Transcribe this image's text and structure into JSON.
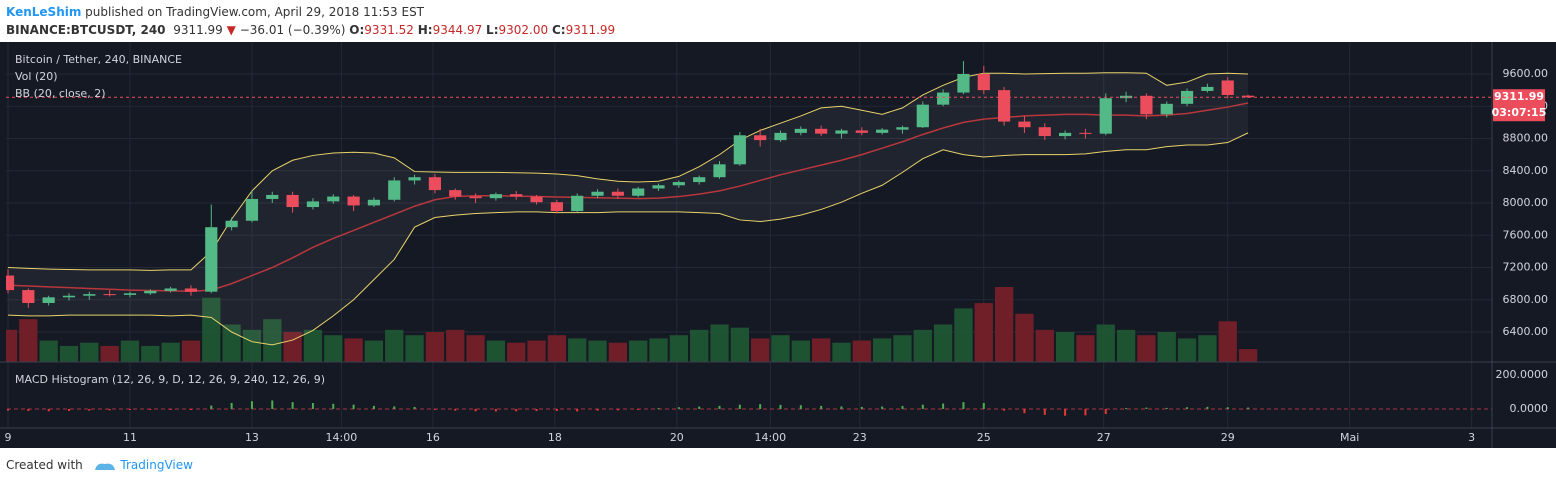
{
  "header": {
    "author": "KenLeShim",
    "published": " published on TradingView.com, April 29, 2018 11:53 EST",
    "symbol": "BINANCE:BTCUSDT, 240",
    "last": "9311.99",
    "change_arrow": "▼",
    "change": "−36.01 (−0.39%)",
    "o_label": "O:",
    "open": "9331.52",
    "h_label": "H:",
    "high": "9344.97",
    "l_label": "L:",
    "low": "9302.00",
    "c_label": "C:",
    "close": "9311.99"
  },
  "chart_data": [
    {
      "type": "candlestick",
      "title": "Bitcoin / Tether, 240, BINANCE",
      "legend": [
        "Vol (20)",
        "BB (20, close, 2)"
      ],
      "countdown": "03:07:15",
      "up_color": "#53b987",
      "down_color": "#eb4d5c",
      "band_color": "#e8d36a",
      "basis_color": "#b8373d",
      "categories": [
        null,
        null,
        null,
        null,
        null,
        null,
        null,
        null,
        null,
        null,
        null,
        null,
        null,
        null,
        null,
        null,
        null,
        null,
        null,
        null,
        null,
        null,
        null,
        null,
        null,
        null,
        null,
        null,
        null,
        null,
        null,
        null,
        null,
        null,
        null,
        null,
        null,
        null,
        null,
        null,
        null,
        null,
        null,
        null,
        null,
        null,
        null,
        null,
        null,
        null,
        null,
        null,
        null,
        null,
        null,
        null,
        null,
        null,
        null,
        null,
        null,
        null
      ],
      "open": [
        7100,
        6920,
        6760,
        6830,
        6850,
        6870,
        6860,
        6880,
        6910,
        6940,
        6900,
        7700,
        7780,
        8050,
        8100,
        7950,
        8020,
        8080,
        7970,
        8040,
        8280,
        8320,
        8160,
        8080,
        8060,
        8110,
        8080,
        8010,
        7900,
        8090,
        8140,
        8090,
        8180,
        8220,
        8260,
        8320,
        8480,
        8840,
        8780,
        8870,
        8920,
        8860,
        8900,
        8870,
        8910,
        8940,
        9220,
        9370,
        9600,
        9400,
        9010,
        8940,
        8830,
        8870,
        8860,
        9300,
        9330,
        9100,
        9230,
        9390,
        9520,
        9331.52
      ],
      "high": [
        7180,
        6940,
        6850,
        6880,
        6900,
        6920,
        6900,
        6930,
        6960,
        6980,
        7980,
        7820,
        8150,
        8140,
        8140,
        8060,
        8110,
        8100,
        8070,
        8320,
        8350,
        8360,
        8180,
        8120,
        8130,
        8150,
        8100,
        8040,
        8120,
        8170,
        8180,
        8200,
        8240,
        8280,
        8340,
        8520,
        8880,
        8920,
        8900,
        8950,
        8960,
        8920,
        8940,
        8930,
        8960,
        9260,
        9410,
        9760,
        9700,
        9440,
        9080,
        8990,
        8900,
        8920,
        9360,
        9380,
        9360,
        9260,
        9420,
        9480,
        9560,
        9344.97
      ],
      "low": [
        6880,
        6700,
        6730,
        6790,
        6800,
        6840,
        6830,
        6860,
        6890,
        6850,
        6880,
        7660,
        7760,
        8000,
        7880,
        7920,
        7990,
        7900,
        7950,
        8020,
        8230,
        8120,
        8040,
        8000,
        8030,
        8040,
        7980,
        7870,
        7890,
        8060,
        8050,
        8070,
        8150,
        8190,
        8230,
        8300,
        8460,
        8700,
        8760,
        8840,
        8830,
        8800,
        8840,
        8850,
        8860,
        8930,
        9200,
        9350,
        9350,
        8960,
        8870,
        8780,
        8790,
        8800,
        8840,
        9250,
        9040,
        9060,
        9200,
        9370,
        9300,
        9302
      ],
      "close": [
        6920,
        6760,
        6830,
        6850,
        6870,
        6860,
        6880,
        6910,
        6940,
        6900,
        7700,
        7780,
        8050,
        8100,
        7950,
        8020,
        8080,
        7970,
        8040,
        8280,
        8320,
        8160,
        8080,
        8060,
        8110,
        8080,
        8010,
        7900,
        8090,
        8140,
        8090,
        8180,
        8220,
        8260,
        8320,
        8480,
        8840,
        8780,
        8870,
        8920,
        8860,
        8900,
        8870,
        8910,
        8940,
        9220,
        9370,
        9600,
        9400,
        9010,
        8940,
        8830,
        8870,
        8860,
        9300,
        9330,
        9100,
        9230,
        9390,
        9440,
        9340,
        9311.99
      ],
      "bb_upper": [
        7200,
        7190,
        7180,
        7175,
        7170,
        7170,
        7170,
        7165,
        7170,
        7170,
        7400,
        7800,
        8150,
        8400,
        8530,
        8590,
        8620,
        8630,
        8620,
        8560,
        8390,
        8385,
        8380,
        8380,
        8380,
        8375,
        8370,
        8360,
        8340,
        8300,
        8270,
        8260,
        8270,
        8330,
        8450,
        8600,
        8780,
        8900,
        8990,
        9080,
        9180,
        9200,
        9150,
        9100,
        9180,
        9340,
        9460,
        9560,
        9610,
        9610,
        9600,
        9605,
        9610,
        9610,
        9615,
        9615,
        9610,
        9460,
        9500,
        9600,
        9610,
        9600
      ],
      "bb_middle": [
        6980,
        6970,
        6960,
        6950,
        6940,
        6930,
        6920,
        6915,
        6910,
        6905,
        6920,
        7000,
        7100,
        7200,
        7320,
        7450,
        7560,
        7660,
        7760,
        7860,
        7960,
        8040,
        8080,
        8090,
        8090,
        8085,
        8080,
        8075,
        8070,
        8065,
        8060,
        8055,
        8060,
        8080,
        8110,
        8150,
        8210,
        8280,
        8350,
        8410,
        8470,
        8530,
        8600,
        8680,
        8760,
        8850,
        8930,
        9000,
        9040,
        9060,
        9080,
        9090,
        9100,
        9100,
        9090,
        9090,
        9080,
        9090,
        9110,
        9150,
        9190,
        9240
      ],
      "bb_lower": [
        6610,
        6600,
        6600,
        6610,
        6610,
        6610,
        6610,
        6610,
        6600,
        6610,
        6580,
        6400,
        6280,
        6240,
        6300,
        6420,
        6600,
        6800,
        7050,
        7300,
        7700,
        7820,
        7850,
        7870,
        7880,
        7890,
        7890,
        7880,
        7880,
        7880,
        7890,
        7890,
        7890,
        7890,
        7880,
        7870,
        7790,
        7770,
        7800,
        7850,
        7920,
        8010,
        8120,
        8220,
        8380,
        8550,
        8660,
        8600,
        8570,
        8590,
        8600,
        8600,
        8600,
        8610,
        8640,
        8660,
        8660,
        8700,
        8720,
        8720,
        8750,
        8870
      ],
      "volume": [
        30,
        40,
        20,
        15,
        18,
        15,
        20,
        15,
        18,
        20,
        60,
        35,
        30,
        40,
        28,
        30,
        25,
        22,
        20,
        30,
        25,
        28,
        30,
        25,
        20,
        18,
        20,
        25,
        22,
        20,
        18,
        20,
        22,
        25,
        30,
        35,
        32,
        22,
        25,
        20,
        22,
        18,
        20,
        22,
        25,
        30,
        35,
        50,
        55,
        70,
        45,
        30,
        28,
        25,
        35,
        30,
        25,
        28,
        22,
        25,
        38,
        12
      ],
      "xlim": [
        0,
        73
      ],
      "xticks": [
        {
          "value": 0,
          "label": "9"
        },
        {
          "value": 6,
          "label": "11"
        },
        {
          "value": 12,
          "label": "13"
        },
        {
          "value": 16.4,
          "label": "14:00"
        },
        {
          "value": 20.9,
          "label": "16"
        },
        {
          "value": 26.9,
          "label": "18"
        },
        {
          "value": 32.9,
          "label": "20"
        },
        {
          "value": 37.5,
          "label": "14:00"
        },
        {
          "value": 41.9,
          "label": "23"
        },
        {
          "value": 48,
          "label": "25"
        },
        {
          "value": 53.9,
          "label": "27"
        },
        {
          "value": 60,
          "label": "29"
        },
        {
          "value": 66,
          "label": "Mai"
        },
        {
          "value": 72,
          "label": "3"
        }
      ],
      "ylim": [
        6028,
        9997
      ],
      "yticks": [
        {
          "value": 6400,
          "label": "6400.00"
        },
        {
          "value": 6800,
          "label": "6800.00"
        },
        {
          "value": 7200,
          "label": "7200.00"
        },
        {
          "value": 7600,
          "label": "7600.00"
        },
        {
          "value": 8000,
          "label": "8000.00"
        },
        {
          "value": 8400,
          "label": "8400.00"
        },
        {
          "value": 8800,
          "label": "8800.00"
        },
        {
          "value": 9200,
          "label": "9200.00"
        },
        {
          "value": 9600,
          "label": "9600.00"
        }
      ],
      "grid": true
    },
    {
      "type": "bar",
      "title": "MACD Histogram (12, 26, 9, D, 12, 26, 9, 240, 12, 26, 9)",
      "values": [
        -10,
        -12,
        -14,
        -12,
        -10,
        -8,
        -6,
        -5,
        -4,
        -5,
        20,
        35,
        45,
        50,
        40,
        35,
        30,
        25,
        18,
        15,
        12,
        -5,
        -10,
        -14,
        -15,
        -14,
        -12,
        -12,
        -15,
        -10,
        -8,
        -5,
        5,
        10,
        14,
        18,
        25,
        28,
        24,
        22,
        18,
        15,
        12,
        14,
        18,
        25,
        32,
        40,
        35,
        -10,
        -25,
        -35,
        -40,
        -38,
        -30,
        5,
        8,
        6,
        10,
        12,
        10,
        8
      ],
      "up_color": "#4caf50",
      "down_color": "#e53935",
      "ylim": [
        -112,
        276
      ],
      "yticks": [
        {
          "value": 0,
          "label": "0.0000"
        },
        {
          "value": 200,
          "label": "200.0000"
        }
      ]
    }
  ],
  "footer": {
    "created": "Created with",
    "brand": "TradingView"
  }
}
